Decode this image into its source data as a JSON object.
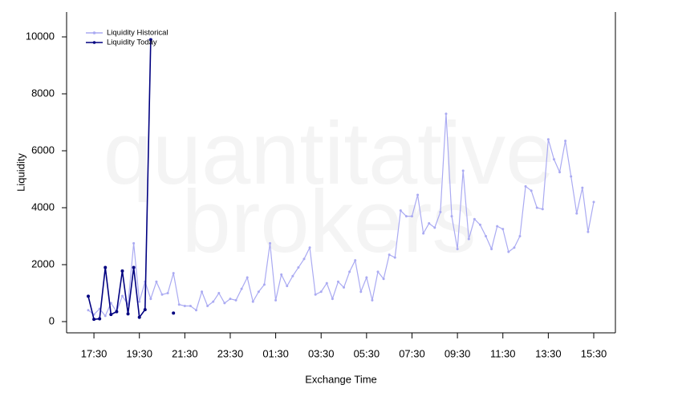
{
  "chart_data": {
    "type": "line",
    "watermark": [
      "quantitative",
      "brokers"
    ],
    "x_label": "Exchange Time",
    "y_label": "Liquidity",
    "categories": [
      null,
      "17:30",
      null,
      null,
      null,
      null,
      null,
      null,
      null,
      "19:30",
      null,
      null,
      null,
      null,
      null,
      null,
      null,
      "21:30",
      null,
      null,
      null,
      null,
      null,
      null,
      null,
      "23:30",
      null,
      null,
      null,
      null,
      null,
      null,
      null,
      "01:30",
      null,
      null,
      null,
      null,
      null,
      null,
      null,
      "03:30",
      null,
      null,
      null,
      null,
      null,
      null,
      null,
      "05:30",
      null,
      null,
      null,
      null,
      null,
      null,
      null,
      "07:30",
      null,
      null,
      null,
      null,
      null,
      null,
      null,
      "09:30",
      null,
      null,
      null,
      null,
      null,
      null,
      null,
      "11:30",
      null,
      null,
      null,
      null,
      null,
      null,
      null,
      "13:30",
      null,
      null,
      null,
      null,
      null,
      null,
      null,
      "15:30"
    ],
    "series": [
      {
        "name": "Liquidity Historical",
        "color": "#aaaaf2",
        "values": [
          400,
          250,
          450,
          200,
          650,
          350,
          900,
          600,
          2750,
          700,
          1400,
          800,
          1400,
          950,
          1000,
          1700,
          600,
          550,
          550,
          400,
          1050,
          550,
          700,
          1000,
          650,
          800,
          750,
          1150,
          1550,
          700,
          1050,
          1300,
          2750,
          750,
          1650,
          1250,
          1600,
          1900,
          2200,
          2600,
          950,
          1050,
          1350,
          800,
          1400,
          1200,
          1750,
          2150,
          1050,
          1550,
          750,
          1750,
          1500,
          2350,
          2250,
          3900,
          3700,
          3700,
          4450,
          3100,
          3450,
          3300,
          3850,
          7300,
          3700,
          2550,
          5300,
          2900,
          3600,
          3400,
          3000,
          2550,
          3350,
          3250,
          2450,
          2600,
          3000,
          4750,
          4600,
          4000,
          3950,
          6400,
          5700,
          5250,
          6350,
          5100,
          3800,
          4700,
          3150,
          4200
        ]
      },
      {
        "name": "Liquidity Today",
        "color": "#000080",
        "values": [
          890,
          80,
          100,
          1900,
          250,
          350,
          1780,
          270,
          1900,
          150,
          420,
          9900,
          null,
          null,
          null,
          300,
          null,
          null,
          null,
          null,
          null,
          null,
          null,
          null,
          null,
          null,
          null,
          null,
          null,
          null,
          null,
          null,
          null,
          null,
          null,
          null,
          null,
          null,
          null,
          null,
          null,
          null,
          null,
          null,
          null,
          null,
          null,
          null,
          null,
          null,
          null,
          null,
          null,
          null,
          null,
          null,
          null,
          null,
          null,
          null,
          null,
          null,
          null,
          null,
          null,
          null,
          null,
          null,
          null,
          null,
          null,
          null,
          null,
          null,
          null,
          null,
          null,
          null,
          null,
          null,
          null,
          null,
          null,
          null,
          null,
          null,
          null,
          null,
          null,
          null
        ]
      }
    ],
    "ylim": [
      -394,
      10873
    ],
    "yticks": [
      0,
      2000,
      4000,
      6000,
      8000,
      10000
    ],
    "legend": "top-left"
  }
}
